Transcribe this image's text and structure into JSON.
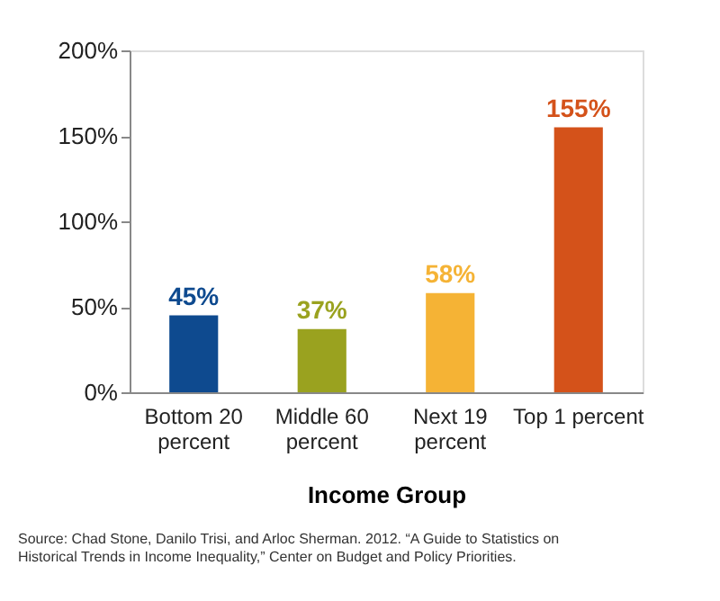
{
  "chart_data": {
    "type": "bar",
    "xlabel": "Income Group",
    "categories": [
      "Bottom 20 percent",
      "Middle 60 percent",
      "Next 19 percent",
      "Top 1 percent"
    ],
    "values": [
      45,
      37,
      58,
      155
    ],
    "colors": [
      "#0e4a8f",
      "#9aa21f",
      "#f5b335",
      "#d4521a"
    ],
    "value_labels": [
      "45%",
      "37%",
      "58%",
      "155%"
    ],
    "ylim": [
      0,
      200
    ],
    "yticks": [
      {
        "value": 0,
        "label": "0%"
      },
      {
        "value": 50,
        "label": "50%"
      },
      {
        "value": 100,
        "label": "100%"
      },
      {
        "value": 150,
        "label": "150%"
      },
      {
        "value": 200,
        "label": "200%"
      }
    ],
    "grid": false,
    "annotations": [
      "Source: Chad Stone, Danilo Trisi, and Arloc Sherman. 2012. “A Guide to Statistics on Historical Trends in Income Inequality,” Center on Budget and Policy Priorities."
    ]
  }
}
